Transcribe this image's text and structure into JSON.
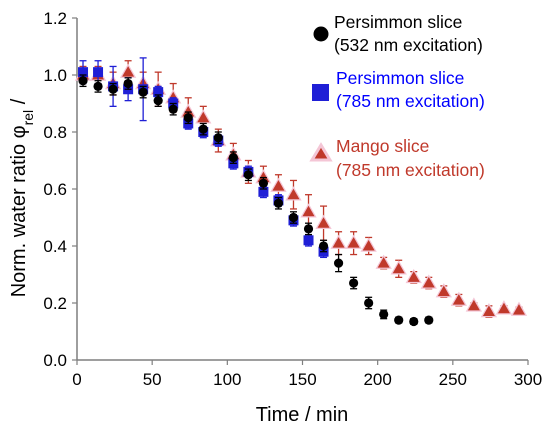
{
  "chart_data": {
    "type": "scatter",
    "xlabel": "Time / min",
    "ylabel_main": "Norm. water ratio φ",
    "ylabel_sub": "rel",
    "ylabel_tail": " /",
    "xlim": [
      0,
      300
    ],
    "ylim": [
      0.0,
      1.2
    ],
    "xticks": [
      0,
      50,
      100,
      150,
      200,
      250,
      300
    ],
    "yticks": [
      "0.0",
      "0.2",
      "0.4",
      "0.6",
      "0.8",
      "1.0",
      "1.2"
    ],
    "grid": false,
    "legend_position": "right",
    "series": [
      {
        "name_line1": "Persimmon slice",
        "name_line2": "(532 nm excitation)",
        "marker": "circle",
        "color": "#000000",
        "text_color": "#000000",
        "x": [
          4,
          14,
          24,
          34,
          44,
          54,
          64,
          74,
          84,
          94,
          104,
          114,
          124,
          134,
          144,
          154,
          164,
          174,
          184,
          194,
          204,
          214,
          224,
          234
        ],
        "y": [
          0.98,
          0.96,
          0.95,
          0.97,
          0.94,
          0.91,
          0.88,
          0.85,
          0.81,
          0.78,
          0.71,
          0.65,
          0.62,
          0.55,
          0.5,
          0.46,
          0.4,
          0.34,
          0.27,
          0.2,
          0.16,
          0.14,
          0.135,
          0.14
        ],
        "err": [
          0.02,
          0.02,
          0.02,
          0.02,
          0.02,
          0.02,
          0.02,
          0.02,
          0.02,
          0.02,
          0.02,
          0.02,
          0.02,
          0.02,
          0.02,
          0.02,
          0.02,
          0.03,
          0.02,
          0.02,
          0.015,
          0.01,
          0.01,
          0.01
        ]
      },
      {
        "name_line1": "Persimmon slice",
        "name_line2": "(785 nm excitation)",
        "marker": "square",
        "color": "#1f1fd6",
        "text_color": "#0000ff",
        "x": [
          4,
          14,
          24,
          34,
          44,
          54,
          64,
          74,
          84,
          94,
          104,
          114,
          124,
          134,
          144,
          154,
          164
        ],
        "y": [
          1.01,
          1.01,
          0.96,
          0.95,
          0.95,
          0.94,
          0.9,
          0.83,
          0.8,
          0.77,
          0.69,
          0.66,
          0.59,
          0.56,
          0.49,
          0.42,
          0.38
        ],
        "err": [
          0.04,
          0.04,
          0.07,
          0.04,
          0.11,
          0.02,
          0.02,
          0.02,
          0.02,
          0.02,
          0.02,
          0.02,
          0.02,
          0.02,
          0.02,
          0.02,
          0.02
        ]
      },
      {
        "name_line1": "Mango slice",
        "name_line2": "(785 nm excitation)",
        "marker": "triangle",
        "color": "#c0392b",
        "text_color": "#c0392b",
        "x": [
          4,
          14,
          24,
          34,
          44,
          54,
          64,
          74,
          84,
          94,
          104,
          114,
          124,
          134,
          144,
          154,
          164,
          174,
          184,
          194,
          204,
          214,
          224,
          234,
          244,
          254,
          264,
          274,
          284,
          294
        ],
        "y": [
          1.0,
          1.0,
          0.97,
          1.01,
          0.97,
          0.95,
          0.92,
          0.87,
          0.85,
          0.77,
          0.72,
          0.66,
          0.64,
          0.61,
          0.58,
          0.52,
          0.48,
          0.41,
          0.41,
          0.4,
          0.34,
          0.32,
          0.29,
          0.27,
          0.24,
          0.21,
          0.19,
          0.17,
          0.18,
          0.175
        ],
        "err": [
          0.03,
          0.03,
          0.04,
          0.04,
          0.04,
          0.06,
          0.05,
          0.05,
          0.04,
          0.04,
          0.04,
          0.04,
          0.04,
          0.04,
          0.05,
          0.06,
          0.06,
          0.04,
          0.04,
          0.03,
          0.02,
          0.03,
          0.02,
          0.02,
          0.02,
          0.02,
          0.01,
          0.02,
          0.01,
          0.01
        ]
      }
    ]
  }
}
